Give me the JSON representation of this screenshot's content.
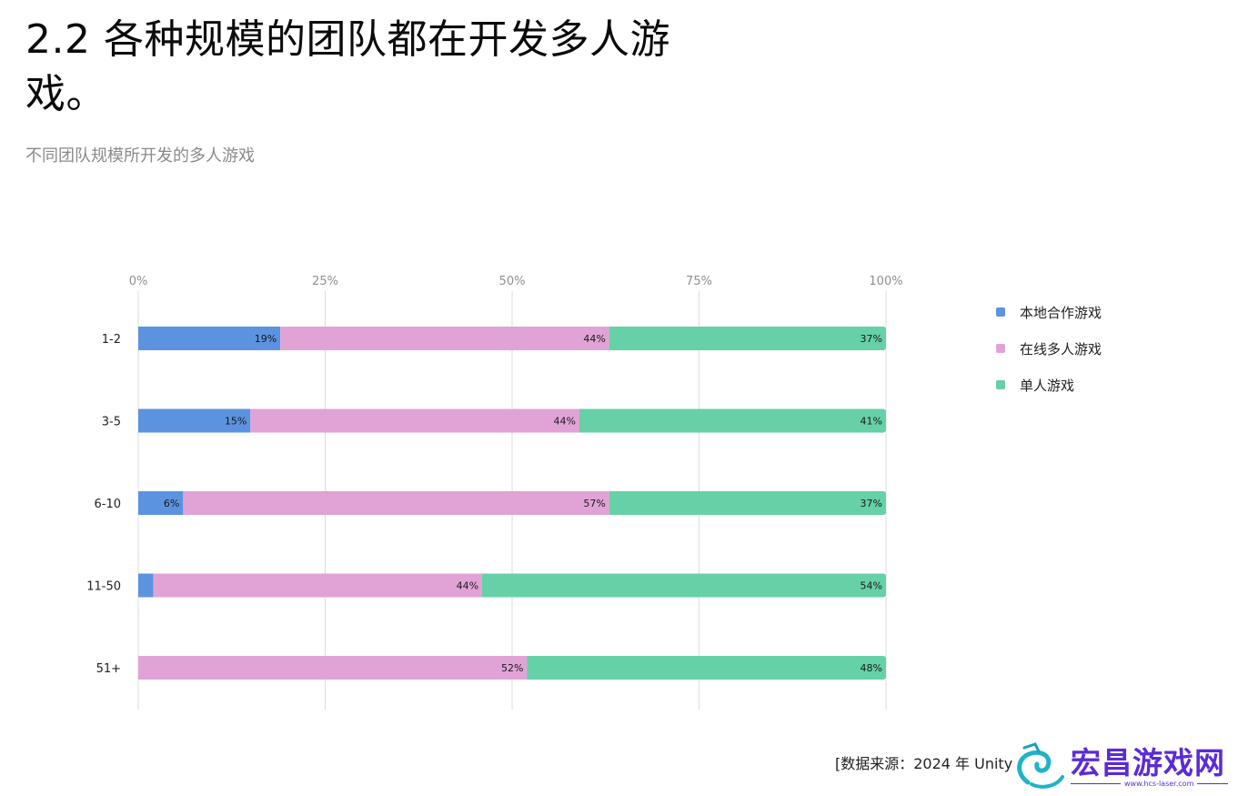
{
  "title": "2.2 各种规模的团队都在开发多人游戏。",
  "subtitle": "不同团队规模所开发的多人游戏",
  "source": "[数据来源：2024 年 Unity",
  "watermark": {
    "text": "宏昌游戏网",
    "sub": "www.hcs-laser.com"
  },
  "chart_data": {
    "type": "bar",
    "orientation": "horizontal",
    "stacked": true,
    "categories": [
      "1-2",
      "3-5",
      "6-10",
      "11-50",
      "51+"
    ],
    "series": [
      {
        "name": "本地合作游戏",
        "color": "#5b93e0",
        "values": [
          19,
          15,
          6,
          2,
          0
        ]
      },
      {
        "name": "在线多人游戏",
        "color": "#e1a3d6",
        "values": [
          44,
          44,
          57,
          44,
          52
        ]
      },
      {
        "name": "单人游戏",
        "color": "#66d0a6",
        "values": [
          37,
          41,
          37,
          54,
          48
        ]
      }
    ],
    "x_ticks": [
      "0%",
      "25%",
      "50%",
      "75%",
      "100%"
    ],
    "xlim": [
      0,
      100
    ],
    "unit": "%",
    "grid": true,
    "legend_position": "right"
  }
}
